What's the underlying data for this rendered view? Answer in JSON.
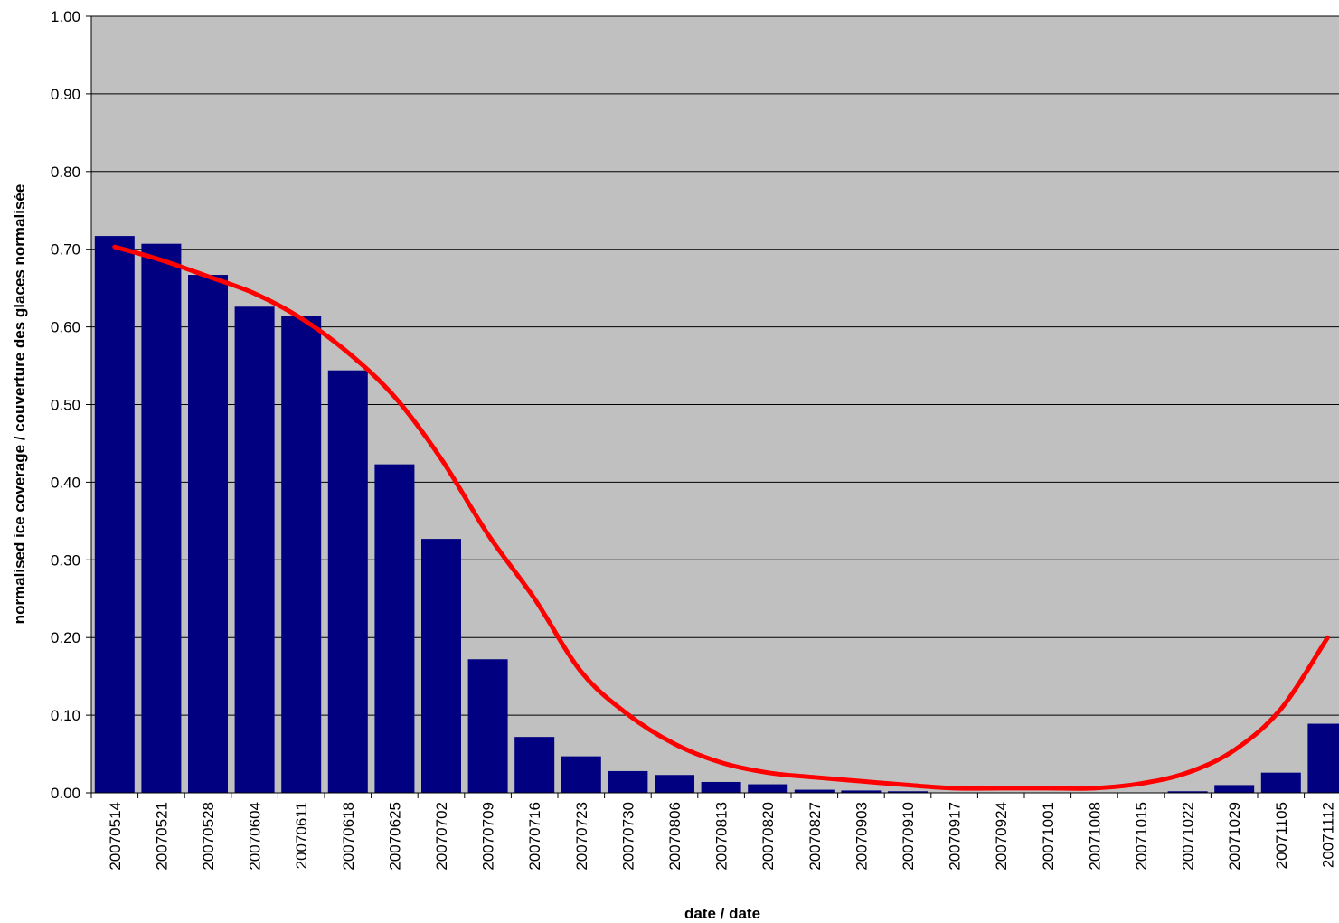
{
  "chart_data": {
    "type": "bar",
    "title": "",
    "xlabel": "date / date",
    "ylabel": "normalised ice coverage / couverture des glaces normalisée",
    "ylim": [
      0,
      1
    ],
    "yticks": [
      "0.00",
      "0.10",
      "0.20",
      "0.30",
      "0.40",
      "0.50",
      "0.60",
      "0.70",
      "0.80",
      "0.90",
      "1.00"
    ],
    "grid": true,
    "legend": "none",
    "categories": [
      "20070514",
      "20070521",
      "20070528",
      "20070604",
      "20070611",
      "20070618",
      "20070625",
      "20070702",
      "20070709",
      "20070716",
      "20070723",
      "20070730",
      "20070806",
      "20070813",
      "20070820",
      "20070827",
      "20070903",
      "20070910",
      "20070917",
      "20070924",
      "20071001",
      "20071008",
      "20071015",
      "20071022",
      "20071029",
      "20071105",
      "20071112"
    ],
    "series": [
      {
        "type": "bar",
        "values": [
          0.717,
          0.707,
          0.667,
          0.626,
          0.614,
          0.544,
          0.423,
          0.327,
          0.172,
          0.072,
          0.047,
          0.028,
          0.023,
          0.014,
          0.011,
          0.004,
          0.003,
          0.002,
          0,
          0,
          0,
          0,
          0,
          0.002,
          0.01,
          0.026,
          0.089
        ]
      },
      {
        "type": "line",
        "values": [
          0.703,
          0.686,
          0.665,
          0.643,
          0.611,
          0.567,
          0.51,
          0.43,
          0.333,
          0.25,
          0.156,
          0.101,
          0.063,
          0.039,
          0.026,
          0.02,
          0.015,
          0.01,
          0.006,
          0.006,
          0.006,
          0.006,
          0.012,
          0.026,
          0.055,
          0.108,
          0.2
        ]
      }
    ],
    "colors": {
      "plot_background": "#c0c0c0",
      "bar": "#000080",
      "line": "#ff0000",
      "gridline": "#000000"
    }
  }
}
